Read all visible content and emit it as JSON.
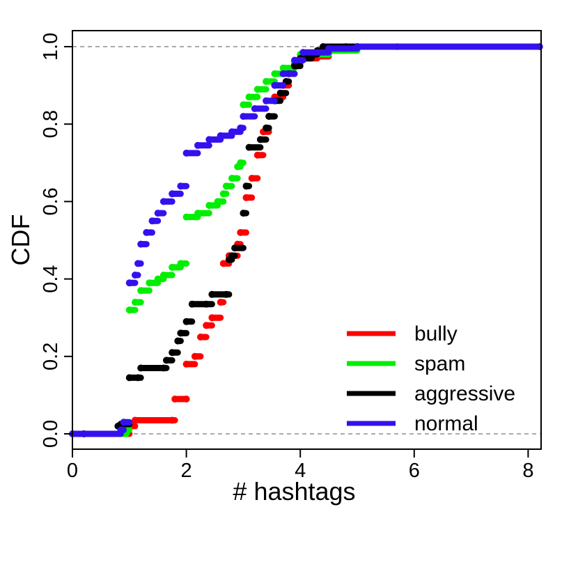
{
  "chart_data": {
    "type": "scatter",
    "plot_style": "empirical-cdf-step-points",
    "xlabel": "# hashtags",
    "ylabel": "CDF",
    "xlim": [
      0,
      8.2
    ],
    "ylim": [
      0,
      1.0
    ],
    "xticks": [
      0,
      2,
      4,
      6,
      8
    ],
    "yticks": [
      0.0,
      0.2,
      0.4,
      0.6,
      0.8,
      1.0
    ],
    "xtick_labels": [
      "0",
      "2",
      "4",
      "6",
      "8"
    ],
    "ytick_labels": [
      "0.0",
      "0.2",
      "0.4",
      "0.6",
      "0.8",
      "1.0"
    ],
    "reference_lines": [
      0,
      1
    ],
    "grid": false,
    "legend_position": "bottom-right",
    "series": [
      {
        "name": "bully",
        "color": "#ff0000",
        "points": [
          [
            0.2,
            0
          ],
          [
            1.0,
            0.02
          ],
          [
            1.1,
            0.035
          ],
          [
            1.75,
            0.035
          ],
          [
            1.8,
            0.09
          ],
          [
            2.0,
            0.09
          ],
          [
            2.0,
            0.18
          ],
          [
            2.15,
            0.2
          ],
          [
            2.25,
            0.25
          ],
          [
            2.35,
            0.28
          ],
          [
            2.45,
            0.3
          ],
          [
            2.6,
            0.34
          ],
          [
            2.65,
            0.44
          ],
          [
            2.75,
            0.46
          ],
          [
            2.9,
            0.49
          ],
          [
            2.95,
            0.52
          ],
          [
            3.05,
            0.61
          ],
          [
            3.15,
            0.66
          ],
          [
            3.25,
            0.72
          ],
          [
            3.35,
            0.78
          ],
          [
            3.45,
            0.82
          ],
          [
            3.55,
            0.87
          ],
          [
            3.7,
            0.9
          ],
          [
            3.8,
            0.93
          ],
          [
            3.9,
            0.955
          ],
          [
            4.0,
            0.97
          ],
          [
            4.3,
            0.975
          ],
          [
            4.5,
            0.99
          ],
          [
            4.8,
            1.0
          ]
        ]
      },
      {
        "name": "spam",
        "color": "#00ee00",
        "points": [
          [
            0.2,
            0
          ],
          [
            0.95,
            0.01
          ],
          [
            1.0,
            0.32
          ],
          [
            1.1,
            0.34
          ],
          [
            1.2,
            0.37
          ],
          [
            1.35,
            0.39
          ],
          [
            1.5,
            0.4
          ],
          [
            1.6,
            0.41
          ],
          [
            1.75,
            0.43
          ],
          [
            1.9,
            0.44
          ],
          [
            2.0,
            0.56
          ],
          [
            2.2,
            0.57
          ],
          [
            2.4,
            0.59
          ],
          [
            2.55,
            0.6
          ],
          [
            2.65,
            0.62
          ],
          [
            2.7,
            0.64
          ],
          [
            2.8,
            0.66
          ],
          [
            2.9,
            0.69
          ],
          [
            2.95,
            0.7
          ],
          [
            3.0,
            0.85
          ],
          [
            3.1,
            0.87
          ],
          [
            3.25,
            0.89
          ],
          [
            3.4,
            0.91
          ],
          [
            3.55,
            0.93
          ],
          [
            3.7,
            0.945
          ],
          [
            3.9,
            0.96
          ],
          [
            4.0,
            0.98
          ],
          [
            4.5,
            0.99
          ],
          [
            5.0,
            1.0
          ],
          [
            5.7,
            1.0
          ]
        ]
      },
      {
        "name": "aggressive",
        "color": "#000000",
        "points": [
          [
            0.2,
            0
          ],
          [
            0.8,
            0.02
          ],
          [
            0.85,
            0.025
          ],
          [
            1.0,
            0.145
          ],
          [
            1.15,
            0.145
          ],
          [
            1.2,
            0.17
          ],
          [
            1.6,
            0.17
          ],
          [
            1.65,
            0.19
          ],
          [
            1.75,
            0.21
          ],
          [
            1.85,
            0.24
          ],
          [
            1.9,
            0.26
          ],
          [
            2.0,
            0.29
          ],
          [
            2.1,
            0.335
          ],
          [
            2.35,
            0.335
          ],
          [
            2.45,
            0.36
          ],
          [
            2.7,
            0.36
          ],
          [
            2.75,
            0.45
          ],
          [
            2.8,
            0.46
          ],
          [
            2.85,
            0.48
          ],
          [
            3.0,
            0.57
          ],
          [
            3.05,
            0.64
          ],
          [
            3.1,
            0.74
          ],
          [
            3.3,
            0.76
          ],
          [
            3.4,
            0.79
          ],
          [
            3.45,
            0.82
          ],
          [
            3.55,
            0.86
          ],
          [
            3.65,
            0.88
          ],
          [
            3.75,
            0.91
          ],
          [
            3.8,
            0.93
          ],
          [
            3.9,
            0.95
          ],
          [
            4.0,
            0.97
          ],
          [
            4.2,
            0.98
          ],
          [
            4.3,
            0.99
          ],
          [
            4.4,
            1.0
          ],
          [
            5.0,
            1.0
          ]
        ]
      },
      {
        "name": "normal",
        "color": "#3311ee",
        "points": [
          [
            0.0,
            0
          ],
          [
            0.85,
            0.01
          ],
          [
            0.9,
            0.03
          ],
          [
            1.0,
            0.39
          ],
          [
            1.1,
            0.41
          ],
          [
            1.15,
            0.44
          ],
          [
            1.2,
            0.49
          ],
          [
            1.3,
            0.52
          ],
          [
            1.4,
            0.55
          ],
          [
            1.5,
            0.57
          ],
          [
            1.6,
            0.6
          ],
          [
            1.75,
            0.62
          ],
          [
            1.9,
            0.64
          ],
          [
            2.0,
            0.725
          ],
          [
            2.2,
            0.745
          ],
          [
            2.4,
            0.76
          ],
          [
            2.6,
            0.77
          ],
          [
            2.8,
            0.78
          ],
          [
            2.95,
            0.79
          ],
          [
            3.0,
            0.82
          ],
          [
            3.2,
            0.84
          ],
          [
            3.4,
            0.86
          ],
          [
            3.55,
            0.9
          ],
          [
            3.7,
            0.93
          ],
          [
            3.9,
            0.965
          ],
          [
            4.05,
            0.985
          ],
          [
            4.5,
            0.995
          ],
          [
            5.0,
            1.0
          ],
          [
            8.2,
            1.0
          ]
        ]
      }
    ]
  }
}
